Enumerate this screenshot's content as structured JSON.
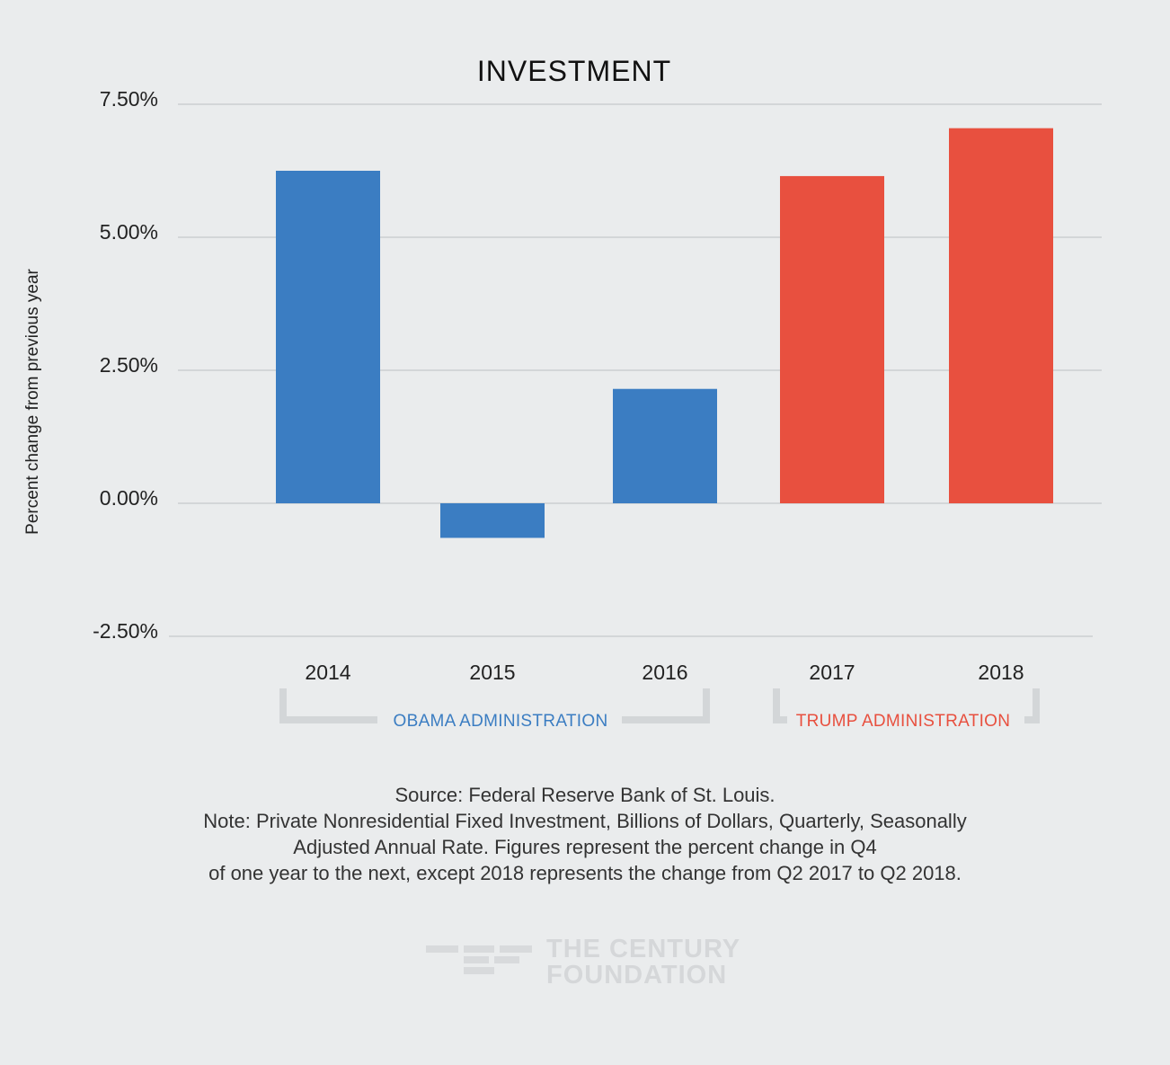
{
  "chart_data": {
    "type": "bar",
    "title": "INVESTMENT",
    "ylabel": "Percent change from previous year",
    "xlabel": "",
    "ylim": [
      -2.5,
      7.5
    ],
    "yticks": [
      {
        "value": 7.5,
        "label": "7.50%"
      },
      {
        "value": 5.0,
        "label": "5.00%"
      },
      {
        "value": 2.5,
        "label": "2.50%"
      },
      {
        "value": 0.0,
        "label": "0.00%"
      },
      {
        "value": -2.5,
        "label": "-2.50%"
      }
    ],
    "categories": [
      "2014",
      "2015",
      "2016",
      "2017",
      "2018"
    ],
    "values": [
      6.25,
      -0.65,
      2.15,
      6.15,
      7.05
    ],
    "bar_colors": [
      "#3b7dc2",
      "#3b7dc2",
      "#3b7dc2",
      "#e8503f",
      "#e8503f"
    ],
    "grid": true,
    "groups": [
      {
        "label": "OBAMA ADMINISTRATION",
        "color": "#3b7dc2"
      },
      {
        "label": "TRUMP ADMINISTRATION",
        "color": "#e8503f"
      }
    ]
  },
  "notes": {
    "source": "Source: Federal Reserve Bank of St. Louis.",
    "note_lines": [
      "Note: Private Nonresidential Fixed Investment, Billions of Dollars, Quarterly, Seasonally",
      "Adjusted Annual Rate. Figures represent the percent change in Q4",
      "of one year to the next, except 2018 represents the change from Q2 2017 to Q2 2018."
    ]
  },
  "logo": {
    "line1": "THE CENTURY",
    "line2": "FOUNDATION"
  }
}
